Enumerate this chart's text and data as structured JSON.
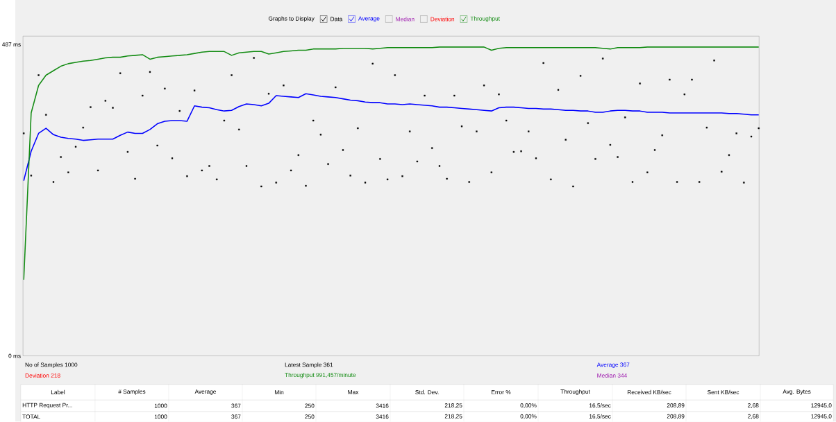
{
  "chart_data": {
    "type": "line",
    "legend_title": "Graphs to Display",
    "legend": "top",
    "tick_labels": "y",
    "categories": [
      null,
      null,
      null,
      null,
      null,
      null,
      null,
      null,
      null,
      null,
      null,
      null,
      null,
      null,
      null,
      null,
      null,
      null,
      null,
      null,
      null,
      null,
      null,
      null,
      null,
      null,
      null,
      null,
      null,
      null,
      null,
      null,
      null,
      null,
      null,
      null,
      null,
      null,
      null,
      null,
      null,
      null,
      null,
      null,
      null,
      null,
      null,
      null,
      null,
      null,
      null,
      null,
      null,
      null,
      null,
      null,
      null,
      null,
      null,
      null,
      null,
      null,
      null,
      null,
      null,
      null,
      null,
      null,
      null,
      null,
      null,
      null,
      null,
      null,
      null,
      null,
      null,
      null,
      null,
      null,
      null,
      null,
      null,
      null,
      null,
      null,
      null,
      null,
      null,
      null,
      null,
      null,
      null,
      null,
      null,
      null,
      null,
      null,
      null,
      null
    ],
    "ylim": [
      0,
      500
    ],
    "yticks": [
      {
        "value": 0,
        "label": "0 ms"
      },
      {
        "value": 487,
        "label": "487 ms"
      }
    ],
    "series": [
      {
        "name": "Data",
        "type": "scatter",
        "marker": "square",
        "color": "#000000",
        "values": [
          348,
          282,
          439,
          377,
          272,
          311,
          287,
          327,
          357,
          389,
          290,
          399,
          388,
          442,
          319,
          277,
          407,
          444,
          329,
          418,
          309,
          383,
          281,
          415,
          290,
          297,
          276,
          368,
          439,
          354,
          297,
          466,
          265,
          410,
          271,
          423,
          290,
          314,
          266,
          368,
          346,
          300,
          420,
          322,
          282,
          356,
          271,
          457,
          308,
          276,
          439,
          281,
          351,
          304,
          407,
          325,
          297,
          277,
          407,
          359,
          272,
          351,
          423,
          287,
          409,
          368,
          319,
          320,
          351,
          309,
          458,
          276,
          416,
          338,
          265,
          438,
          364,
          308,
          465,
          330,
          311,
          373,
          272,
          426,
          287,
          322,
          345,
          432,
          272,
          409,
          432,
          272,
          357,
          462,
          288,
          314,
          348,
          271,
          343,
          356
        ]
      },
      {
        "name": "Average",
        "marker": "none",
        "line_style": "solid",
        "color": "#0000ff",
        "values": [
          274,
          320,
          348,
          356,
          346,
          342,
          340,
          339,
          337,
          338,
          339,
          339,
          339,
          345,
          350,
          348,
          348,
          354,
          363,
          367,
          368,
          368,
          367,
          391,
          389,
          388,
          385,
          383,
          384,
          390,
          394,
          393,
          391,
          395,
          407,
          406,
          405,
          404,
          410,
          408,
          406,
          405,
          404,
          402,
          400,
          399,
          397,
          396,
          396,
          394,
          394,
          393,
          394,
          393,
          392,
          391,
          389,
          389,
          388,
          387,
          386,
          385,
          384,
          383,
          388,
          389,
          389,
          388,
          387,
          387,
          386,
          386,
          385,
          384,
          384,
          383,
          383,
          381,
          381,
          383,
          384,
          384,
          383,
          383,
          381,
          381,
          381,
          380,
          380,
          380,
          380,
          380,
          380,
          380,
          380,
          379,
          379,
          378,
          377,
          377
        ]
      },
      {
        "name": "Throughput",
        "marker": "none",
        "line_style": "solid",
        "color": "#148c14",
        "values": [
          119,
          380,
          423,
          439,
          446,
          453,
          457,
          459,
          461,
          462,
          464,
          466,
          467,
          467,
          469,
          470,
          471,
          464,
          467,
          468,
          469,
          470,
          471,
          473,
          475,
          476,
          476,
          476,
          470,
          474,
          475,
          476,
          476,
          472,
          474,
          476,
          477,
          478,
          478,
          480,
          480,
          480,
          480,
          481,
          481,
          481,
          481,
          480,
          481,
          482,
          482,
          482,
          482,
          482,
          482,
          482,
          483,
          483,
          483,
          483,
          483,
          483,
          483,
          478,
          481,
          482,
          482,
          482,
          482,
          482,
          482,
          482,
          482,
          482,
          482,
          482,
          482,
          482,
          481,
          480,
          482,
          482,
          482,
          482,
          483,
          483,
          483,
          483,
          483,
          483,
          483,
          483,
          483,
          483,
          483,
          483,
          483,
          483,
          483,
          483
        ]
      }
    ],
    "annotations": [
      "Median",
      "Deviation",
      "No of Samples  1000",
      "Deviation     218",
      "Latest Sample  361",
      "Throughput     991,457/minute",
      "Average  367",
      "Median  344",
      "Label",
      "# Samples",
      "Average",
      "Min",
      "Max",
      "Std. Dev.",
      "Error %",
      "Throughput",
      "Received KB/sec",
      "Sent KB/sec",
      "Avg. Bytes",
      "HTTP Request Pr...",
      "1000",
      "367",
      "250",
      "3416",
      "218,25",
      "0,00%",
      "16,5/sec",
      "208,89",
      "2,68",
      "12945,0",
      "TOTAL",
      "1000",
      "367",
      "250",
      "3416",
      "218,25",
      "0,00%",
      "16,5/sec",
      "208,89",
      "2,68",
      "12945,0"
    ]
  }
}
